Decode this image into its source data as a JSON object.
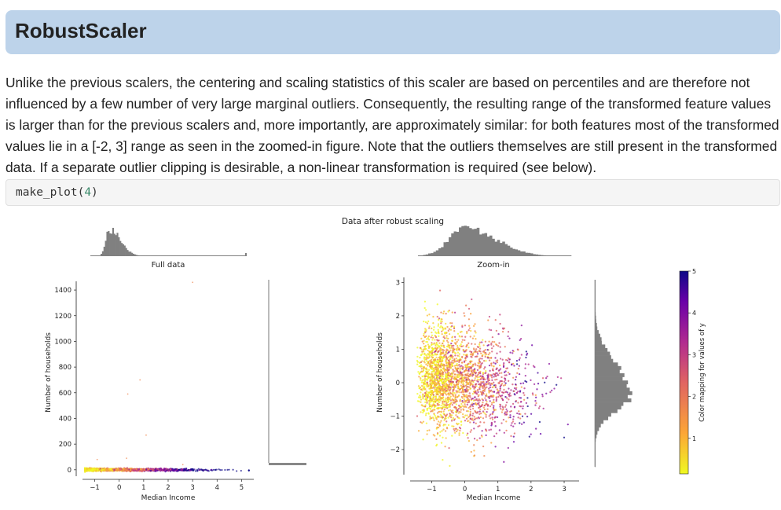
{
  "heading": "RobustScaler",
  "paragraph": "Unlike the previous scalers, the centering and scaling statistics of this scaler are based on percentiles and are therefore not influenced by a few number of very large marginal outliers. Consequently, the resulting range of the transformed feature values is larger than for the previous scalers and, more importantly, are approximately similar: for both features most of the transformed values lie in a [-2, 3] range as seen in the zoomed-in figure. Note that the outliers themselves are still present in the transformed data. If a separate outlier clipping is desirable, a non-linear transformation is required (see below).",
  "code": {
    "fn": "make_plot(",
    "arg": "4",
    "close": ")"
  },
  "chart_data": [
    {
      "type": "scatter",
      "suptitle": "Data after robust scaling",
      "title": "Full data",
      "xlabel": "Median Income",
      "ylabel": "Number of households",
      "xticks": [
        "−1",
        "0",
        "1",
        "2",
        "3",
        "4",
        "5"
      ],
      "yticks": [
        "0",
        "200",
        "400",
        "600",
        "800",
        "1000",
        "1200",
        "1400"
      ],
      "xlim": [
        -1.5,
        5.5
      ],
      "ylim": [
        -50,
        1480
      ],
      "outliers": [
        [
          3.0,
          1460
        ],
        [
          0.85,
          700
        ],
        [
          0.35,
          590
        ],
        [
          1.1,
          270
        ],
        [
          -0.9,
          80
        ],
        [
          0.3,
          90
        ],
        [
          2.6,
          40
        ]
      ]
    },
    {
      "type": "scatter",
      "title": "Zoom-in",
      "xlabel": "Median Income",
      "ylabel": "Number of households",
      "xticks": [
        "−1",
        "0",
        "1",
        "2",
        "3"
      ],
      "yticks": [
        "−2",
        "−1",
        "0",
        "1",
        "2",
        "3"
      ],
      "xlim": [
        -1.65,
        3.45
      ],
      "ylim": [
        -2.75,
        3.15
      ]
    }
  ],
  "colorbar": {
    "label": "Color mapping for values of y",
    "ticks": [
      "1",
      "2",
      "3",
      "4",
      "5"
    ],
    "range": [
      0.15,
      5
    ],
    "colors": [
      "#f0f921",
      "#fca636",
      "#e16462",
      "#b12a90",
      "#6a00a8",
      "#0d0887"
    ]
  }
}
